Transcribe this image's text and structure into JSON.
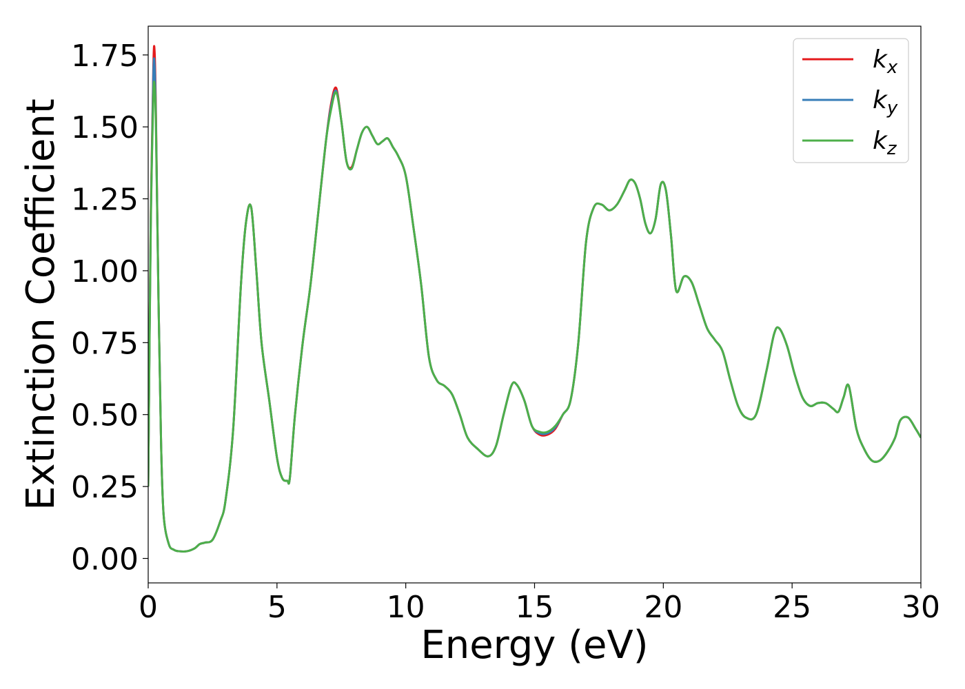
{
  "chart_data": {
    "type": "line",
    "xlabel": "Energy (eV)",
    "ylabel": "Extinction Coefficient",
    "xlim": [
      0,
      30
    ],
    "ylim": [
      -0.085,
      1.85
    ],
    "xticks": [
      "0",
      "5",
      "10",
      "15",
      "20",
      "25",
      "30"
    ],
    "yticks": [
      "0.00",
      "0.25",
      "0.50",
      "0.75",
      "1.00",
      "1.25",
      "1.50",
      "1.75"
    ],
    "legend_position": "top-right",
    "grid": false,
    "series": [
      {
        "name": "k",
        "subscript": "x",
        "color": "#e41a1c",
        "x": [
          0,
          0.1,
          0.2,
          0.25,
          0.3,
          0.4,
          0.5,
          0.6,
          0.8,
          1.0,
          1.2,
          1.5,
          1.8,
          2.0,
          2.2,
          2.5,
          2.8,
          3.0,
          3.3,
          3.6,
          3.8,
          4.0,
          4.2,
          4.4,
          4.7,
          5.0,
          5.2,
          5.4,
          5.5,
          5.7,
          6.0,
          6.3,
          6.6,
          6.9,
          7.1,
          7.3,
          7.5,
          7.7,
          7.9,
          8.1,
          8.3,
          8.5,
          8.7,
          8.9,
          9.1,
          9.3,
          9.5,
          9.7,
          10.0,
          10.3,
          10.6,
          10.9,
          11.2,
          11.5,
          11.8,
          12.1,
          12.4,
          12.8,
          13.2,
          13.5,
          13.8,
          14.1,
          14.3,
          14.6,
          14.9,
          15.2,
          15.5,
          15.8,
          16.1,
          16.4,
          16.7,
          17.0,
          17.3,
          17.6,
          17.9,
          18.2,
          18.5,
          18.7,
          18.9,
          19.1,
          19.3,
          19.5,
          19.7,
          19.9,
          20.1,
          20.3,
          20.5,
          20.8,
          21.1,
          21.4,
          21.7,
          22.0,
          22.3,
          22.6,
          22.9,
          23.2,
          23.6,
          24.0,
          24.3,
          24.5,
          24.8,
          25.1,
          25.4,
          25.7,
          26.0,
          26.3,
          26.6,
          26.8,
          27.0,
          27.2,
          27.5,
          27.8,
          28.1,
          28.4,
          28.7,
          29.0,
          29.2,
          29.5,
          29.8,
          30.0
        ],
        "y": [
          0.25,
          1.2,
          1.71,
          1.76,
          1.55,
          0.9,
          0.4,
          0.15,
          0.05,
          0.03,
          0.025,
          0.025,
          0.035,
          0.05,
          0.055,
          0.065,
          0.13,
          0.2,
          0.45,
          0.95,
          1.17,
          1.22,
          1.0,
          0.75,
          0.55,
          0.35,
          0.28,
          0.27,
          0.28,
          0.5,
          0.75,
          0.95,
          1.2,
          1.45,
          1.58,
          1.635,
          1.52,
          1.38,
          1.36,
          1.42,
          1.48,
          1.5,
          1.47,
          1.44,
          1.45,
          1.46,
          1.43,
          1.4,
          1.33,
          1.15,
          0.95,
          0.7,
          0.62,
          0.6,
          0.57,
          0.5,
          0.42,
          0.38,
          0.355,
          0.39,
          0.5,
          0.6,
          0.605,
          0.55,
          0.46,
          0.43,
          0.43,
          0.45,
          0.5,
          0.55,
          0.75,
          1.1,
          1.22,
          1.23,
          1.21,
          1.23,
          1.28,
          1.315,
          1.305,
          1.25,
          1.165,
          1.13,
          1.18,
          1.3,
          1.28,
          1.12,
          0.93,
          0.98,
          0.96,
          0.88,
          0.8,
          0.76,
          0.72,
          0.62,
          0.53,
          0.49,
          0.5,
          0.65,
          0.78,
          0.8,
          0.74,
          0.64,
          0.56,
          0.53,
          0.54,
          0.54,
          0.52,
          0.51,
          0.56,
          0.6,
          0.45,
          0.38,
          0.34,
          0.34,
          0.37,
          0.42,
          0.48,
          0.49,
          0.45,
          0.42
        ]
      },
      {
        "name": "k",
        "subscript": "y",
        "color": "#377eb8",
        "x": [
          0,
          0.1,
          0.2,
          0.25,
          0.3,
          0.4,
          0.5,
          0.6,
          0.8,
          1.0,
          1.2,
          1.5,
          1.8,
          2.0,
          2.2,
          2.5,
          2.8,
          3.0,
          3.3,
          3.6,
          3.8,
          4.0,
          4.2,
          4.4,
          4.7,
          5.0,
          5.2,
          5.4,
          5.5,
          5.7,
          6.0,
          6.3,
          6.6,
          6.9,
          7.1,
          7.3,
          7.5,
          7.7,
          7.9,
          8.1,
          8.3,
          8.5,
          8.7,
          8.9,
          9.1,
          9.3,
          9.5,
          9.7,
          10.0,
          10.3,
          10.6,
          10.9,
          11.2,
          11.5,
          11.8,
          12.1,
          12.4,
          12.8,
          13.2,
          13.5,
          13.8,
          14.1,
          14.3,
          14.6,
          14.9,
          15.2,
          15.5,
          15.8,
          16.1,
          16.4,
          16.7,
          17.0,
          17.3,
          17.6,
          17.9,
          18.2,
          18.5,
          18.7,
          18.9,
          19.1,
          19.3,
          19.5,
          19.7,
          19.9,
          20.1,
          20.3,
          20.5,
          20.8,
          21.1,
          21.4,
          21.7,
          22.0,
          22.3,
          22.6,
          22.9,
          23.2,
          23.6,
          24.0,
          24.3,
          24.5,
          24.8,
          25.1,
          25.4,
          25.7,
          26.0,
          26.3,
          26.6,
          26.8,
          27.0,
          27.2,
          27.5,
          27.8,
          28.1,
          28.4,
          28.7,
          29.0,
          29.2,
          29.5,
          29.8,
          30.0
        ],
        "y": [
          0.25,
          1.18,
          1.68,
          1.71,
          1.52,
          0.9,
          0.4,
          0.15,
          0.05,
          0.03,
          0.025,
          0.025,
          0.035,
          0.05,
          0.055,
          0.065,
          0.13,
          0.2,
          0.45,
          0.95,
          1.17,
          1.22,
          1.0,
          0.75,
          0.55,
          0.35,
          0.28,
          0.27,
          0.28,
          0.5,
          0.75,
          0.95,
          1.2,
          1.45,
          1.57,
          1.625,
          1.52,
          1.38,
          1.355,
          1.42,
          1.48,
          1.5,
          1.47,
          1.44,
          1.45,
          1.46,
          1.43,
          1.4,
          1.33,
          1.15,
          0.95,
          0.7,
          0.62,
          0.6,
          0.57,
          0.5,
          0.42,
          0.38,
          0.355,
          0.39,
          0.5,
          0.6,
          0.605,
          0.55,
          0.46,
          0.435,
          0.435,
          0.455,
          0.5,
          0.55,
          0.75,
          1.1,
          1.22,
          1.23,
          1.21,
          1.23,
          1.28,
          1.315,
          1.305,
          1.25,
          1.165,
          1.13,
          1.18,
          1.3,
          1.28,
          1.12,
          0.93,
          0.98,
          0.96,
          0.88,
          0.8,
          0.76,
          0.72,
          0.62,
          0.53,
          0.49,
          0.5,
          0.65,
          0.78,
          0.8,
          0.74,
          0.64,
          0.56,
          0.53,
          0.54,
          0.54,
          0.52,
          0.51,
          0.56,
          0.6,
          0.45,
          0.38,
          0.34,
          0.34,
          0.37,
          0.42,
          0.48,
          0.49,
          0.45,
          0.42
        ]
      },
      {
        "name": "k",
        "subscript": "z",
        "color": "#4daf4a",
        "x": [
          0,
          0.1,
          0.2,
          0.25,
          0.3,
          0.4,
          0.5,
          0.6,
          0.8,
          1.0,
          1.2,
          1.5,
          1.8,
          2.0,
          2.2,
          2.5,
          2.8,
          3.0,
          3.3,
          3.6,
          3.8,
          4.0,
          4.2,
          4.4,
          4.7,
          5.0,
          5.2,
          5.4,
          5.5,
          5.7,
          6.0,
          6.3,
          6.6,
          6.9,
          7.1,
          7.3,
          7.5,
          7.7,
          7.9,
          8.1,
          8.3,
          8.5,
          8.7,
          8.9,
          9.1,
          9.3,
          9.5,
          9.7,
          10.0,
          10.3,
          10.6,
          10.9,
          11.2,
          11.5,
          11.8,
          12.1,
          12.4,
          12.8,
          13.2,
          13.5,
          13.8,
          14.1,
          14.3,
          14.6,
          14.9,
          15.2,
          15.5,
          15.8,
          16.1,
          16.4,
          16.7,
          17.0,
          17.3,
          17.6,
          17.9,
          18.2,
          18.5,
          18.7,
          18.9,
          19.1,
          19.3,
          19.5,
          19.7,
          19.9,
          20.1,
          20.3,
          20.5,
          20.8,
          21.1,
          21.4,
          21.7,
          22.0,
          22.3,
          22.6,
          22.9,
          23.2,
          23.6,
          24.0,
          24.3,
          24.5,
          24.8,
          25.1,
          25.4,
          25.7,
          26.0,
          26.3,
          26.6,
          26.8,
          27.0,
          27.2,
          27.5,
          27.8,
          28.1,
          28.4,
          28.7,
          29.0,
          29.2,
          29.5,
          29.8,
          30.0
        ],
        "y": [
          0.25,
          1.15,
          1.6,
          1.64,
          1.5,
          0.9,
          0.4,
          0.15,
          0.05,
          0.03,
          0.025,
          0.025,
          0.035,
          0.05,
          0.055,
          0.065,
          0.13,
          0.2,
          0.45,
          0.95,
          1.17,
          1.22,
          1.0,
          0.75,
          0.55,
          0.35,
          0.28,
          0.27,
          0.28,
          0.5,
          0.75,
          0.95,
          1.2,
          1.45,
          1.56,
          1.62,
          1.52,
          1.38,
          1.355,
          1.42,
          1.48,
          1.5,
          1.47,
          1.44,
          1.45,
          1.46,
          1.43,
          1.4,
          1.33,
          1.15,
          0.95,
          0.7,
          0.62,
          0.6,
          0.57,
          0.5,
          0.42,
          0.38,
          0.355,
          0.39,
          0.5,
          0.6,
          0.605,
          0.55,
          0.46,
          0.44,
          0.44,
          0.46,
          0.5,
          0.55,
          0.75,
          1.1,
          1.22,
          1.23,
          1.21,
          1.23,
          1.28,
          1.315,
          1.305,
          1.25,
          1.165,
          1.13,
          1.18,
          1.3,
          1.28,
          1.12,
          0.93,
          0.98,
          0.96,
          0.88,
          0.8,
          0.76,
          0.72,
          0.62,
          0.53,
          0.49,
          0.5,
          0.65,
          0.78,
          0.8,
          0.74,
          0.64,
          0.56,
          0.53,
          0.54,
          0.54,
          0.52,
          0.51,
          0.56,
          0.6,
          0.45,
          0.38,
          0.34,
          0.34,
          0.37,
          0.42,
          0.48,
          0.49,
          0.45,
          0.42
        ]
      }
    ]
  }
}
